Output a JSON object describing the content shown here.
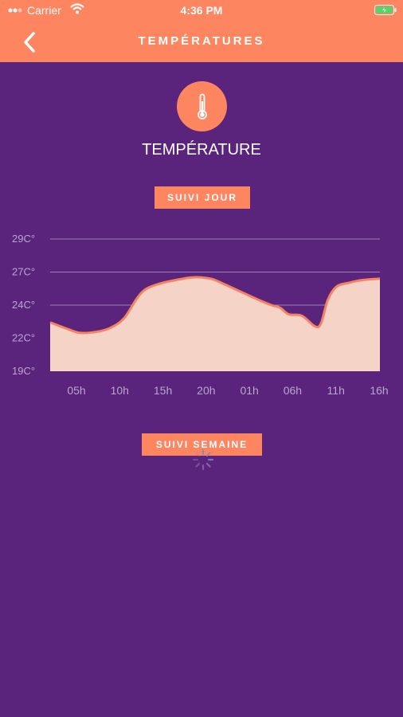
{
  "status_bar": {
    "carrier": "Carrier",
    "time": "4:36 PM"
  },
  "nav": {
    "title": "TEMPÉRATURES"
  },
  "section": {
    "title": "TEMPÉRATURE"
  },
  "day_section": {
    "label": "SUIVI JOUR"
  },
  "week_section": {
    "label": "SUIVI SEMAINE"
  },
  "colors": {
    "background": "#5a237c",
    "accent": "#fd8560",
    "area_fill": "#f6d3c7",
    "grid": "#9c80b9",
    "axis_text": "#b9a6cf"
  },
  "chart_data": {
    "type": "area",
    "y_ticks": [
      "19C°",
      "22C°",
      "24C°",
      "27C°",
      "29C°"
    ],
    "x_ticks": [
      "05h",
      "10h",
      "15h",
      "20h",
      "01h",
      "06h",
      "11h",
      "16h"
    ],
    "ylim": [
      19,
      29
    ],
    "grid": true,
    "series": [
      {
        "values": [
          [
            2.0,
            22.7
          ],
          [
            4.0,
            22.2
          ],
          [
            5.5,
            21.9
          ],
          [
            7.5,
            22.0
          ],
          [
            9.0,
            22.3
          ],
          [
            10.5,
            23.0
          ],
          [
            12.0,
            24.5
          ],
          [
            13.0,
            25.2
          ],
          [
            14.5,
            25.6
          ],
          [
            16.5,
            25.9
          ],
          [
            18.5,
            26.1
          ],
          [
            20.5,
            26.0
          ],
          [
            22.0,
            25.6
          ],
          [
            24.0,
            25.0
          ],
          [
            26.0,
            24.4
          ],
          [
            27.5,
            24.0
          ],
          [
            28.5,
            23.8
          ],
          [
            29.5,
            23.3
          ],
          [
            31.0,
            23.2
          ],
          [
            32.5,
            22.4
          ],
          [
            33.2,
            22.6
          ],
          [
            34.0,
            24.4
          ],
          [
            35.0,
            25.4
          ],
          [
            36.5,
            25.7
          ],
          [
            38.0,
            25.9
          ],
          [
            40.0,
            26.0
          ]
        ]
      }
    ]
  }
}
